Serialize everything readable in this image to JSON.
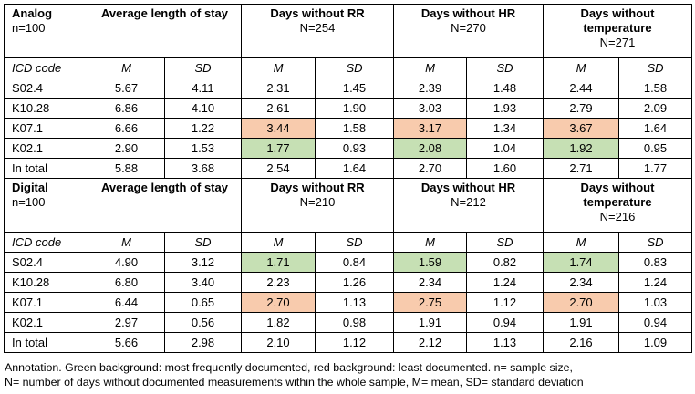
{
  "sections": [
    {
      "title": "Analog",
      "n": "n=100",
      "metrics": [
        {
          "title": "Average length of stay",
          "n": ""
        },
        {
          "title": "Days without RR",
          "n": "N=254"
        },
        {
          "title": "Days without HR",
          "n": "N=270"
        },
        {
          "title": "Days without temperature",
          "n": "N=271"
        }
      ],
      "subheader": {
        "code": "ICD code",
        "m": "M",
        "sd": "SD"
      },
      "rows": [
        {
          "code": "S02.4",
          "cells": [
            "5.67",
            "4.11",
            "2.31",
            "1.45",
            "2.39",
            "1.48",
            "2.44",
            "1.58"
          ],
          "highlights": [
            "",
            "",
            "",
            "",
            "",
            "",
            "",
            ""
          ]
        },
        {
          "code": "K10.28",
          "cells": [
            "6.86",
            "4.10",
            "2.61",
            "1.90",
            "3.03",
            "1.93",
            "2.79",
            "2.09"
          ],
          "highlights": [
            "",
            "",
            "",
            "",
            "",
            "",
            "",
            ""
          ]
        },
        {
          "code": "K07.1",
          "cells": [
            "6.66",
            "1.22",
            "3.44",
            "1.58",
            "3.17",
            "1.34",
            "3.67",
            "1.64"
          ],
          "highlights": [
            "",
            "",
            "red",
            "",
            "red",
            "",
            "red",
            ""
          ]
        },
        {
          "code": "K02.1",
          "cells": [
            "2.90",
            "1.53",
            "1.77",
            "0.93",
            "2.08",
            "1.04",
            "1.92",
            "0.95"
          ],
          "highlights": [
            "",
            "",
            "green",
            "",
            "green",
            "",
            "green",
            ""
          ]
        },
        {
          "code": "In total",
          "cells": [
            "5.88",
            "3.68",
            "2.54",
            "1.64",
            "2.70",
            "1.60",
            "2.71",
            "1.77"
          ],
          "highlights": [
            "",
            "",
            "",
            "",
            "",
            "",
            "",
            ""
          ]
        }
      ]
    },
    {
      "title": "Digital",
      "n": "n=100",
      "metrics": [
        {
          "title": "Average length of stay",
          "n": ""
        },
        {
          "title": "Days without RR",
          "n": "N=210"
        },
        {
          "title": "Days without HR",
          "n": "N=212"
        },
        {
          "title": "Days without temperature",
          "n": "N=216"
        }
      ],
      "subheader": {
        "code": "ICD code",
        "m": "M",
        "sd": "SD"
      },
      "rows": [
        {
          "code": "S02.4",
          "cells": [
            "4.90",
            "3.12",
            "1.71",
            "0.84",
            "1.59",
            "0.82",
            "1.74",
            "0.83"
          ],
          "highlights": [
            "",
            "",
            "green",
            "",
            "green",
            "",
            "green",
            ""
          ]
        },
        {
          "code": "K10.28",
          "cells": [
            "6.80",
            "3.40",
            "2.23",
            "1.26",
            "2.34",
            "1.24",
            "2.34",
            "1.24"
          ],
          "highlights": [
            "",
            "",
            "",
            "",
            "",
            "",
            "",
            ""
          ]
        },
        {
          "code": "K07.1",
          "cells": [
            "6.44",
            "0.65",
            "2.70",
            "1.13",
            "2.75",
            "1.12",
            "2.70",
            "1.03"
          ],
          "highlights": [
            "",
            "",
            "red",
            "",
            "red",
            "",
            "red",
            ""
          ]
        },
        {
          "code": "K02.1",
          "cells": [
            "2.97",
            "0.56",
            "1.82",
            "0.98",
            "1.91",
            "0.94",
            "1.91",
            "0.94"
          ],
          "highlights": [
            "",
            "",
            "",
            "",
            "",
            "",
            "",
            ""
          ]
        },
        {
          "code": "In total",
          "cells": [
            "5.66",
            "2.98",
            "2.10",
            "1.12",
            "2.12",
            "1.13",
            "2.16",
            "1.09"
          ],
          "highlights": [
            "",
            "",
            "",
            "",
            "",
            "",
            "",
            ""
          ]
        }
      ]
    }
  ],
  "annotation": {
    "line1": "Annotation. Green background: most frequently documented, red background: least documented. n= sample size,",
    "line2": "N= number of days without documented measurements within the whole sample, M= mean, SD= standard deviation"
  },
  "colors": {
    "green_highlight": "#c6e0b4",
    "red_highlight": "#f8cbad",
    "border": "#000000"
  }
}
